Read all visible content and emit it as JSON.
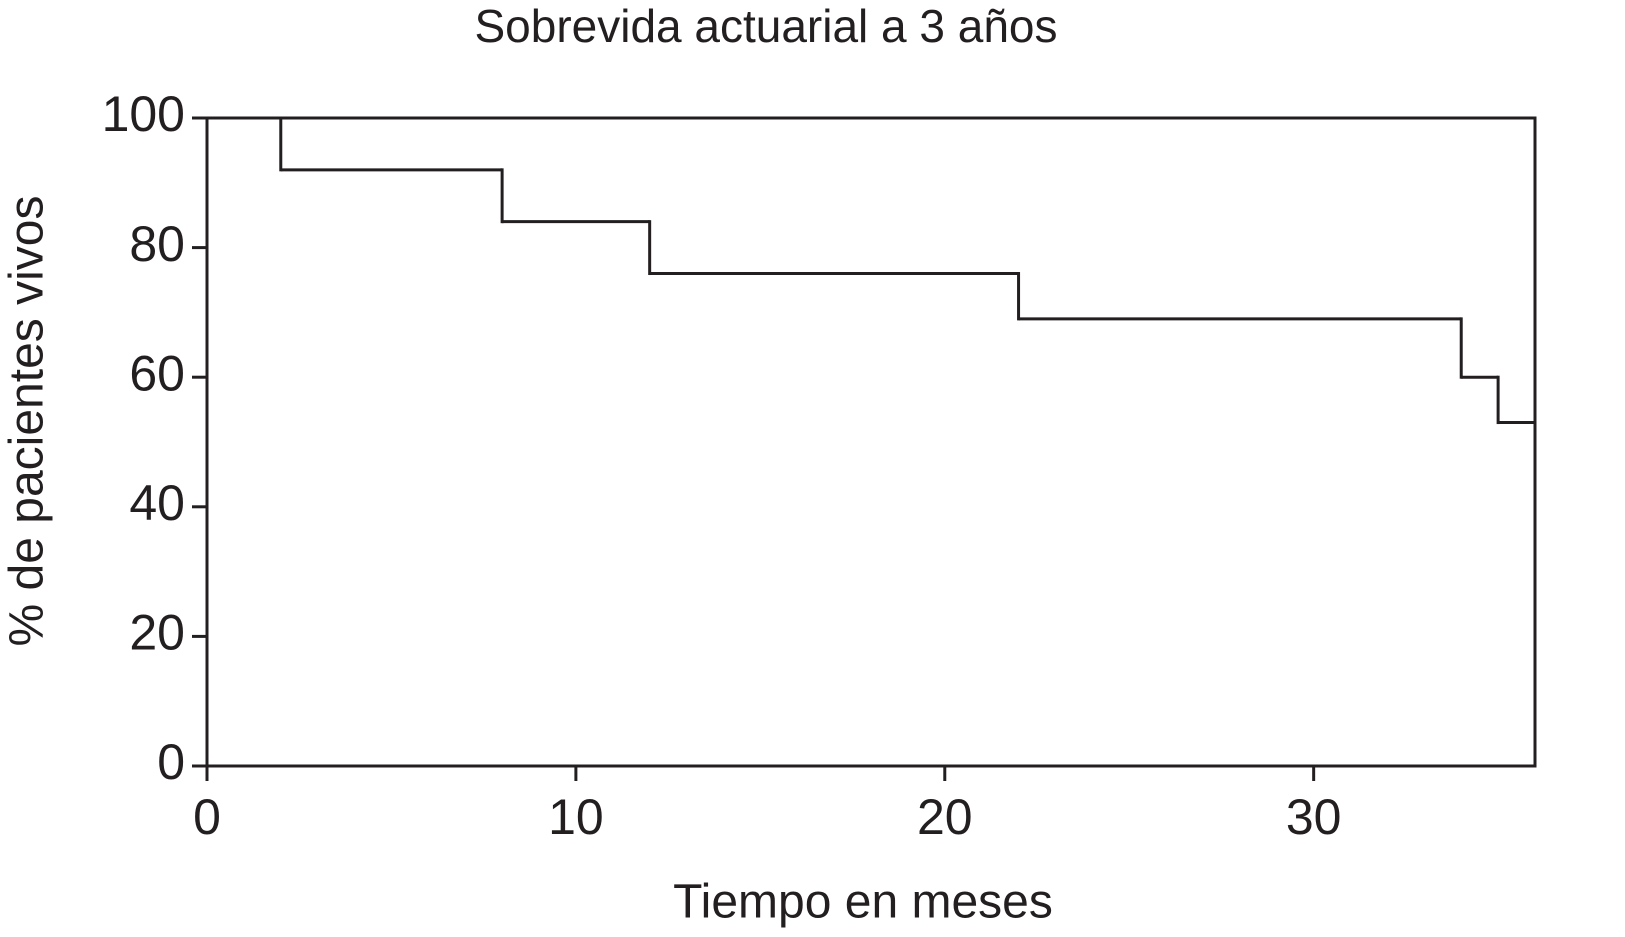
{
  "chart_data": {
    "type": "line",
    "step": "post",
    "title": "Sobrevida actuarial a 3 años",
    "xlabel": "Tiempo en meses",
    "ylabel": "% de pacientes vivos",
    "x": [
      0,
      2,
      8,
      12,
      22,
      34,
      35,
      36
    ],
    "values": [
      100,
      92,
      84,
      76,
      69,
      60,
      53,
      53
    ],
    "color": "#231f20",
    "xlim": [
      0,
      36
    ],
    "xticks": [
      0,
      10,
      20,
      30
    ],
    "ylim": [
      0,
      100
    ],
    "yticks": [
      0,
      20,
      40,
      60,
      80,
      100
    ],
    "grid": false
  }
}
